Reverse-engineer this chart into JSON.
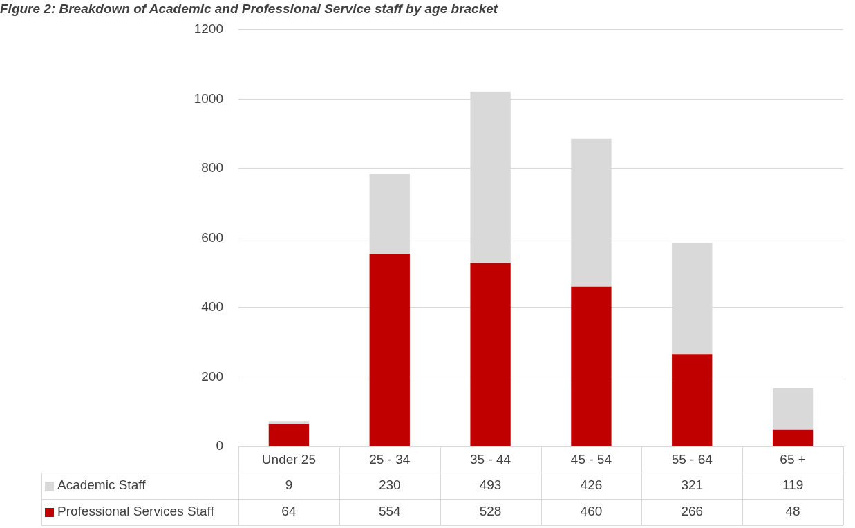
{
  "chart_data": {
    "type": "bar",
    "title": "Figure 2: Breakdown of Academic and Professional Service staff by age bracket",
    "categories": [
      "Under 25",
      "25 - 34",
      "35 - 44",
      "45 - 54",
      "55 - 64",
      "65 +"
    ],
    "series": [
      {
        "name": "Professional Services Staff",
        "color": "#c00000",
        "values": [
          64,
          554,
          528,
          460,
          266,
          48
        ]
      },
      {
        "name": "Academic Staff",
        "color": "#d9d9d9",
        "values": [
          9,
          230,
          493,
          426,
          321,
          119
        ]
      }
    ],
    "stacked": true,
    "ylim": [
      0,
      1200
    ],
    "yticks": [
      0,
      200,
      400,
      600,
      800,
      1000,
      1200
    ],
    "grid": "y",
    "legend": "bottom",
    "data_labels": true
  }
}
